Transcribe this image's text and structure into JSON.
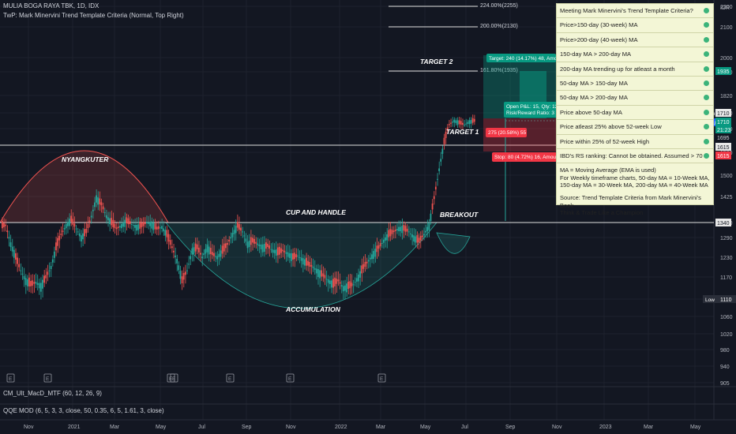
{
  "header": {
    "title": "MULIA BOGA RAYA TBK, 1D, IDX",
    "indicator": "TwP: Mark Minervini Trend Template Criteria (Normal, Top Right)"
  },
  "panel": {
    "title": "Meeting Mark Minervini's Trend Template Criteria?",
    "rows": [
      "Price>150-day (30-week) MA",
      "Price>200-day (40-week) MA",
      "150-day MA > 200-day MA",
      "200-day MA trending up for atleast a month",
      "50-day MA > 150-day MA",
      "50-day MA > 200-day MA",
      "Price above 50-day MA",
      "Price atleast 25% above 52-week Low",
      "Price within 25% of 52-week High",
      "IBD's RS ranking: Cannot be obtained. Assumed > 70"
    ],
    "note1": "MA = Moving Average (EMA is used)",
    "note2": "For Weekly timeframe charts, 50-day MA = 10-Week MA,",
    "note3": "150-day MA = 30-Week MA, 200-day MA = 40-Week MA",
    "note4": "Source: Trend Template Criteria from Mark Minervini's Book",
    "note5": "Think & Trade Like a Champion",
    "dot_color": "#3bb37a"
  },
  "indicators": {
    "macd": "CM_Ult_MacD_MTF (60, 12, 26, 9)",
    "qqe": "QQE MOD (6, 5, 3, 3, close, 50, 0.35, 6, 5, 1.61, 3, close)"
  },
  "colors": {
    "background": "#131722",
    "up": "#26a69a",
    "down": "#ef5350",
    "target": "#089981",
    "stop": "#f23645"
  },
  "chart_data": {
    "type": "candlestick",
    "currency": "IDR",
    "yticks": [
      2200,
      2100,
      2000,
      1910,
      1820,
      1750,
      1670,
      1580,
      1500,
      1425,
      1340,
      1290,
      1230,
      1170,
      1110,
      1060,
      1020,
      980,
      940,
      905
    ],
    "xticks": [
      "Nov",
      "2021",
      "Mar",
      "May",
      "Jul",
      "Sep",
      "Nov",
      "2022",
      "Mar",
      "May",
      "Jul",
      "Sep",
      "Nov",
      "2023",
      "Mar",
      "May"
    ],
    "annotations": [
      "NYANGKUTER",
      "CUP AND HANDLE",
      "ACCUMULATION",
      "BREAKOUT",
      "TARGET 1",
      "TARGET 2"
    ],
    "fib_levels": [
      "224.00%(2255)",
      "200.00%(2130)",
      "161.80%(1935)"
    ],
    "trade": {
      "target_label": "Target: 240 (14.17%) 48, Amount:",
      "pnl_label": "Open P&L: 15, Qty: 125",
      "rr_label": "Risk/Reward Ratio: 3",
      "target1_label": "275 (20.58%) 55",
      "stop_label": "Stop: 80 (4.72%) 16, Amount:"
    },
    "price_labels": {
      "p1935": "1935",
      "high_label": "High",
      "high": "1710",
      "symbol": "KEJU",
      "last": "1710",
      "time": "21:23",
      "p1695": "1695",
      "p1615a": "1615",
      "p1615b": "1615",
      "p1340": "1340",
      "low_label": "Low",
      "low": "1110"
    },
    "levels": {
      "resistance": 1340,
      "target1": 1695,
      "high": 1710,
      "stop": 1615,
      "low": 1110
    },
    "x_ticks_positions_note": "",
    "series_closes": [
      1330,
      1270,
      1230,
      1190,
      1160,
      1150,
      1155,
      1145,
      1170,
      1200,
      1260,
      1300,
      1330,
      1350,
      1320,
      1290,
      1310,
      1360,
      1420,
      1400,
      1360,
      1340,
      1320,
      1330,
      1345,
      1335,
      1325,
      1330,
      1340,
      1335,
      1320,
      1325,
      1300,
      1260,
      1220,
      1160,
      1190,
      1250,
      1260,
      1230,
      1260,
      1240,
      1230,
      1250,
      1270,
      1300,
      1330,
      1310,
      1270,
      1280,
      1270,
      1260,
      1265,
      1250,
      1245,
      1250,
      1240,
      1230,
      1235,
      1220,
      1210,
      1200,
      1185,
      1175,
      1160,
      1150,
      1160,
      1140,
      1145,
      1150,
      1170,
      1200,
      1220,
      1240,
      1260,
      1280,
      1300,
      1310,
      1320,
      1320,
      1310,
      1290,
      1280,
      1300,
      1330,
      1420,
      1520,
      1620,
      1690,
      1710,
      1700,
      1690,
      1705,
      1710
    ]
  }
}
